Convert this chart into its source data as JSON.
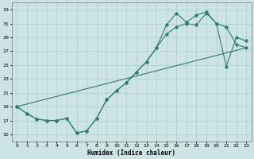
{
  "xlabel": "Humidex (Indice chaleur)",
  "ylabel": "",
  "xlim": [
    -0.5,
    23.5
  ],
  "ylim": [
    14,
    34
  ],
  "yticks": [
    15,
    17,
    19,
    21,
    23,
    25,
    27,
    29,
    31,
    33
  ],
  "xticks": [
    0,
    1,
    2,
    3,
    4,
    5,
    6,
    7,
    8,
    9,
    10,
    11,
    12,
    13,
    14,
    15,
    16,
    17,
    18,
    19,
    20,
    21,
    22,
    23
  ],
  "bg_color": "#cde4e4",
  "grid_color": "#aacece",
  "line_color": "#2e7d6e",
  "line1_x": [
    0,
    1,
    2,
    3,
    4,
    5,
    6,
    7,
    8,
    9,
    10,
    11,
    12,
    13,
    14,
    15,
    16,
    17,
    18,
    19,
    20,
    21,
    22,
    23
  ],
  "line1_y": [
    19.0,
    18.0,
    17.2,
    17.0,
    17.0,
    17.3,
    15.2,
    15.5,
    17.3,
    20.0,
    21.3,
    22.5,
    24.0,
    25.5,
    27.5,
    29.5,
    30.5,
    31.0,
    30.8,
    32.5,
    31.0,
    30.5,
    28.0,
    27.5
  ],
  "line2_x": [
    0,
    1,
    2,
    3,
    4,
    5,
    6,
    7,
    8,
    9,
    10,
    11,
    12,
    13,
    14,
    15,
    16,
    17,
    18,
    19,
    20,
    21,
    22,
    23
  ],
  "line2_y": [
    19.0,
    18.0,
    17.2,
    17.0,
    17.0,
    17.3,
    15.2,
    15.5,
    17.3,
    20.0,
    21.3,
    22.5,
    24.0,
    25.5,
    27.5,
    30.8,
    32.5,
    31.2,
    32.2,
    32.7,
    31.0,
    24.8,
    29.0,
    28.5
  ],
  "line3_x": [
    0,
    23
  ],
  "line3_y": [
    19.0,
    27.5
  ]
}
